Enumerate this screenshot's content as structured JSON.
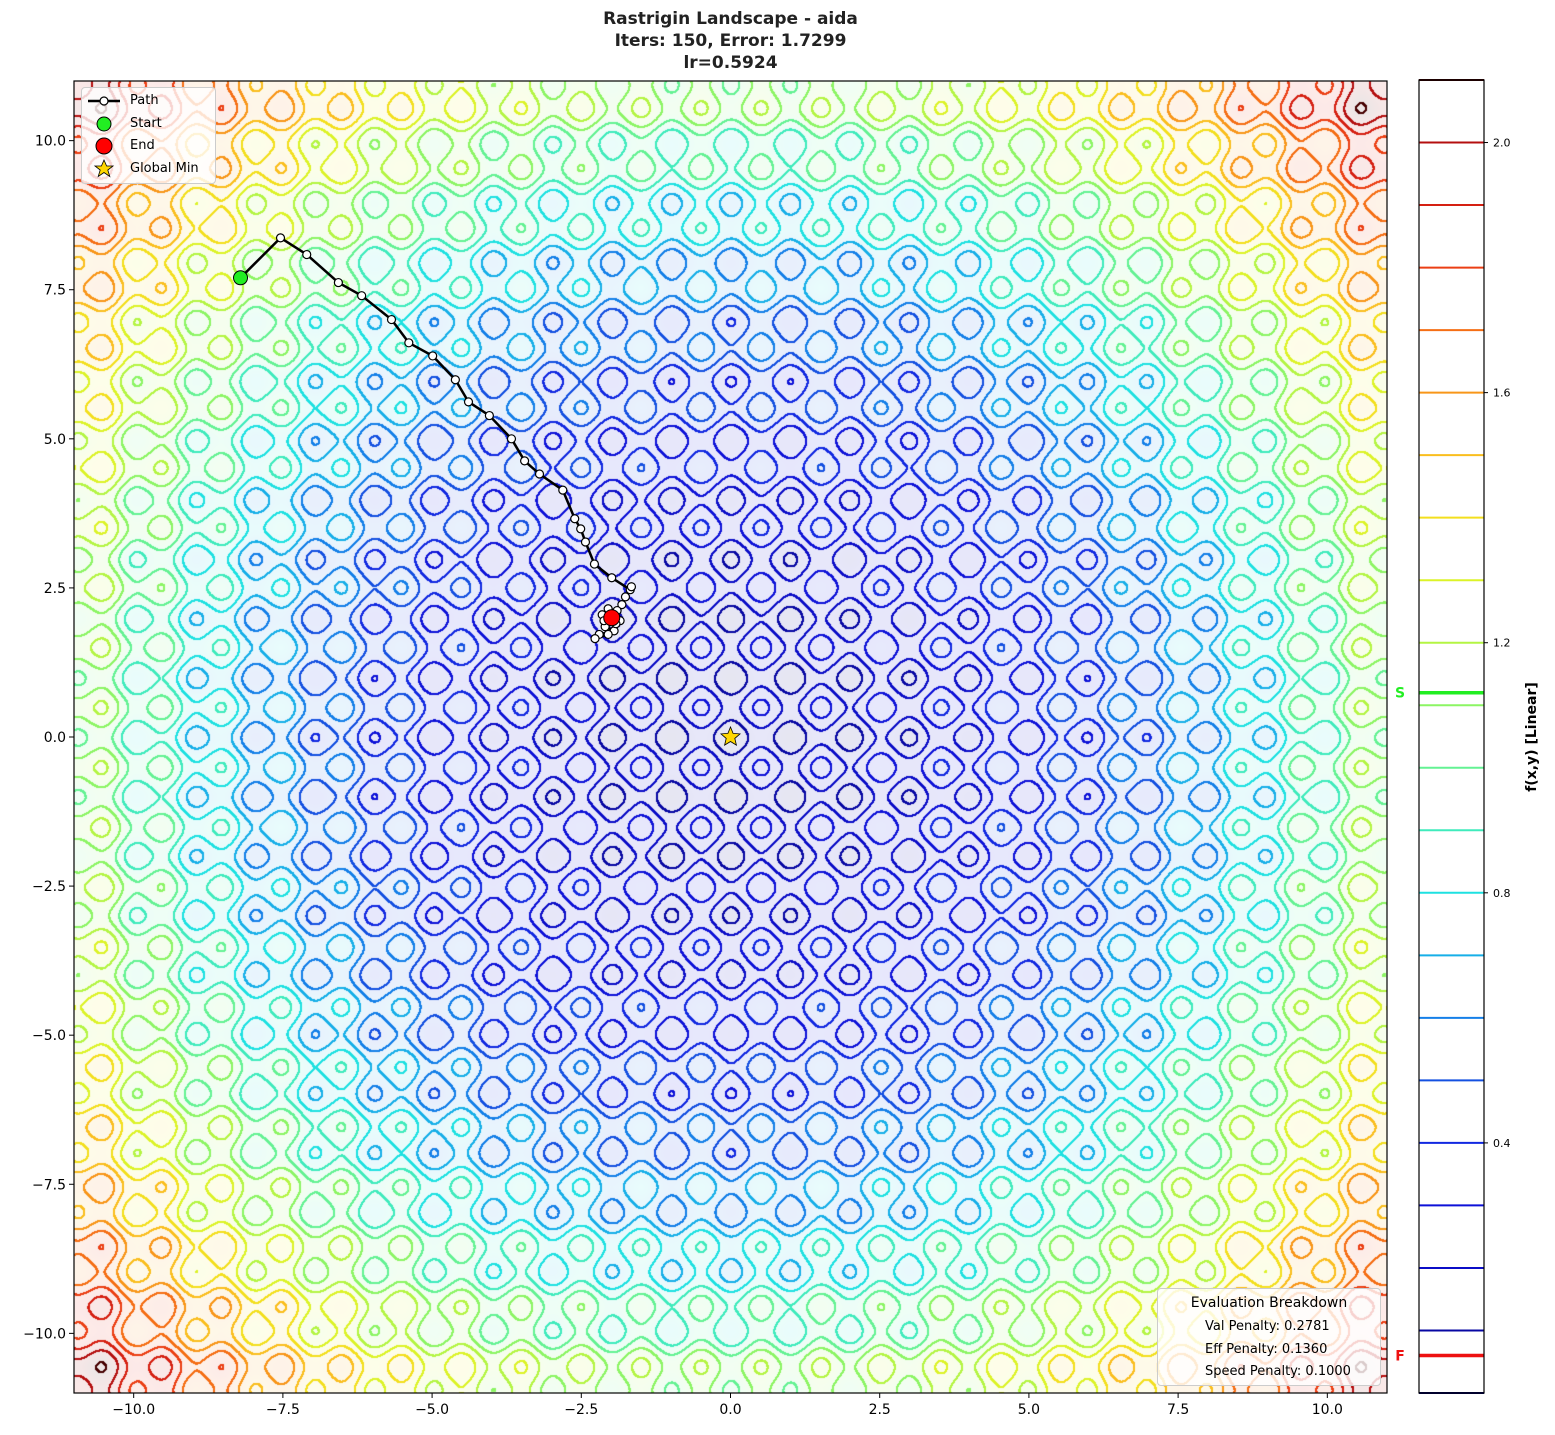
{
  "title": {
    "line1": "Rastrigin Landscape - aida",
    "line2": "Iters: 150, Error: 1.7299",
    "line3": "lr=0.5924"
  },
  "chart_data": {
    "type": "contour",
    "function": "rastrigin",
    "xlim": [
      -11,
      11
    ],
    "ylim": [
      -11,
      11
    ],
    "xticks": [
      -10.0,
      -7.5,
      -5.0,
      -2.5,
      0.0,
      2.5,
      5.0,
      7.5,
      10.0
    ],
    "yticks": [
      -10.0,
      -7.5,
      -5.0,
      -2.5,
      0.0,
      2.5,
      5.0,
      7.5,
      10.0
    ],
    "xtick_labels": [
      "−10.0",
      "−7.5",
      "−5.0",
      "−2.5",
      "0.0",
      "2.5",
      "5.0",
      "7.5",
      "10.0"
    ],
    "ytick_labels": [
      "−10.0",
      "−7.5",
      "−5.0",
      "−2.5",
      "0.0",
      "2.5",
      "5.0",
      "7.5",
      "10.0"
    ],
    "grid": false,
    "colormap": "jet-like (navy → blue → cyan → green → yellow → orange → red)",
    "contour_levels_step": 0.1,
    "colorbar": {
      "label": "f(x,y) [Linear]",
      "range": [
        0.0,
        2.1
      ],
      "ticks": [
        0.4,
        0.8,
        1.2,
        1.6,
        2.0
      ],
      "tick_labels": [
        "0.4",
        "0.8",
        "1.2",
        "1.6",
        "2.0"
      ],
      "markers": [
        {
          "label": "S",
          "value": 1.12,
          "color": "#22ee22"
        },
        {
          "label": "F",
          "value": 0.06,
          "color": "#ee1111"
        }
      ]
    },
    "path": [
      [
        -8.21,
        7.7
      ],
      [
        -7.54,
        8.37
      ],
      [
        -7.1,
        8.09
      ],
      [
        -6.57,
        7.62
      ],
      [
        -6.18,
        7.4
      ],
      [
        -5.68,
        7.0
      ],
      [
        -5.39,
        6.61
      ],
      [
        -4.99,
        6.39
      ],
      [
        -4.61,
        5.99
      ],
      [
        -4.39,
        5.62
      ],
      [
        -4.04,
        5.39
      ],
      [
        -3.67,
        5.0
      ],
      [
        -3.45,
        4.63
      ],
      [
        -3.2,
        4.41
      ],
      [
        -2.81,
        4.14
      ],
      [
        -2.61,
        3.66
      ],
      [
        -2.51,
        3.49
      ],
      [
        -2.43,
        3.27
      ],
      [
        -2.28,
        2.9
      ],
      [
        -1.99,
        2.67
      ],
      [
        -1.68,
        2.47
      ],
      [
        -1.66,
        2.52
      ],
      [
        -1.76,
        2.35
      ],
      [
        -1.82,
        2.22
      ],
      [
        -1.9,
        2.12
      ],
      [
        -2.05,
        2.15
      ],
      [
        -2.15,
        2.05
      ],
      [
        -1.85,
        1.95
      ],
      [
        -2.1,
        1.85
      ],
      [
        -1.95,
        1.78
      ],
      [
        -2.2,
        1.72
      ],
      [
        -2.27,
        1.65
      ],
      [
        -2.05,
        1.72
      ],
      [
        -1.92,
        1.9
      ],
      [
        -2.12,
        1.95
      ],
      [
        -1.99,
        2.0
      ]
    ],
    "start": [
      -8.21,
      7.7
    ],
    "end": [
      -1.99,
      2.0
    ],
    "global_min": [
      0.0,
      0.0
    ],
    "legend": {
      "placement": "top-left",
      "entries": [
        "Path",
        "Start",
        "End",
        "Global Min"
      ]
    },
    "colors": {
      "path": "#000000",
      "start": "#22ee22",
      "end": "#ff0000",
      "global_min": "#ffd700"
    }
  },
  "evaluation": {
    "title": "Evaluation Breakdown",
    "val": "Val Penalty: 0.2781",
    "eff": "Eff Penalty: 0.1360",
    "speed": "Speed Penalty: 0.1000"
  }
}
